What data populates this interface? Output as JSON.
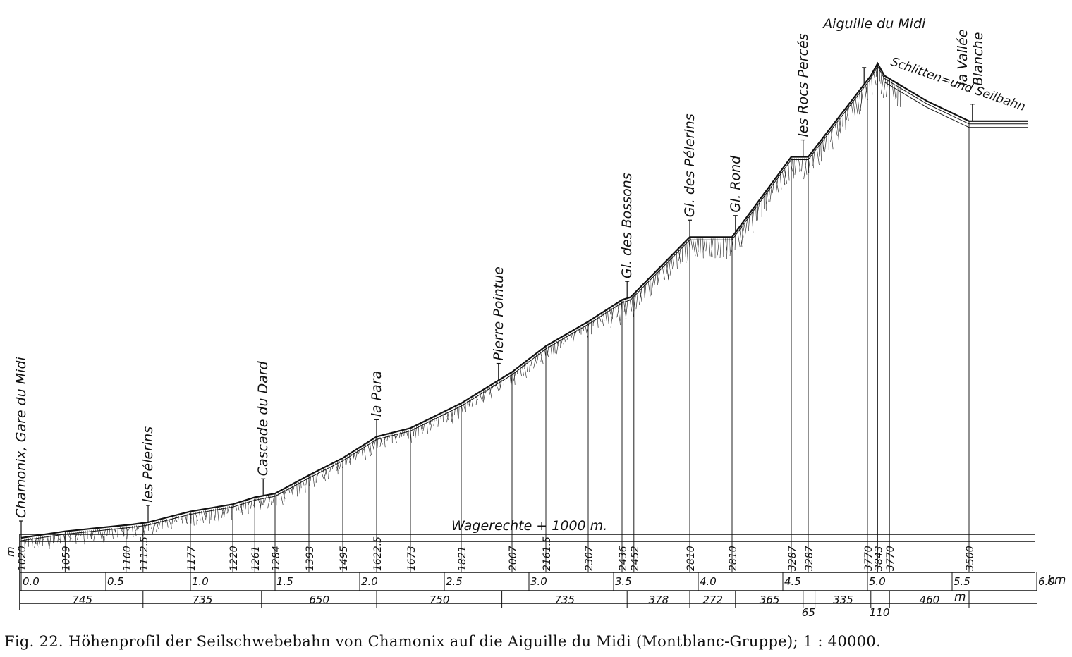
{
  "diagram": {
    "unit_label": "m",
    "km_unit": "km",
    "length_unit": "m",
    "horizontal_label": "Wagerechte + 1000 m.",
    "cable_label": "Schlitten=und Seilbahn",
    "stations": [
      {
        "name": "Chamonix, Gare du Midi",
        "km": 0.0
      },
      {
        "name": "les Pélerins",
        "km": 0.75
      },
      {
        "name": "Cascade du Dard",
        "km": 1.43
      },
      {
        "name": "la Para",
        "km": 2.1
      },
      {
        "name": "Pierre Pointue",
        "km": 2.82
      },
      {
        "name": "Gl. des Bossons",
        "km": 3.58
      },
      {
        "name": "Gl. des Pélerins",
        "km": 3.95
      },
      {
        "name": "Gl. Rond",
        "km": 4.22
      },
      {
        "name": "les Rocs Percés",
        "km": 4.62
      },
      {
        "name": "Aiguille du Midi",
        "km": 4.98
      },
      {
        "name": "la Vallée Blanche",
        "km": 5.62
      }
    ],
    "profile": [
      {
        "km": 0.0,
        "elev": 1020
      },
      {
        "km": 0.26,
        "elev": 1059
      },
      {
        "km": 0.66,
        "elev": 1100
      },
      {
        "km": 0.75,
        "elev": 1112.5
      },
      {
        "km": 1.0,
        "elev": 1177
      },
      {
        "km": 1.25,
        "elev": 1220
      },
      {
        "km": 1.38,
        "elev": 1261
      },
      {
        "km": 1.5,
        "elev": 1284
      },
      {
        "km": 1.7,
        "elev": 1393
      },
      {
        "km": 1.9,
        "elev": 1495
      },
      {
        "km": 2.1,
        "elev": 1622.5
      },
      {
        "km": 2.3,
        "elev": 1673
      },
      {
        "km": 2.6,
        "elev": 1821
      },
      {
        "km": 2.9,
        "elev": 2007
      },
      {
        "km": 3.1,
        "elev": 2161.5
      },
      {
        "km": 3.35,
        "elev": 2307
      },
      {
        "km": 3.55,
        "elev": 2436
      },
      {
        "km": 3.6,
        "elev": 2452
      },
      {
        "km": 3.95,
        "elev": 2810
      },
      {
        "km": 4.2,
        "elev": 2810
      },
      {
        "km": 4.55,
        "elev": 3287
      },
      {
        "km": 4.65,
        "elev": 3287
      },
      {
        "km": 5.02,
        "elev": 3770
      },
      {
        "km": 5.06,
        "elev": 3843
      },
      {
        "km": 5.1,
        "elev": 3770
      },
      {
        "km": 5.35,
        "elev": 3620
      },
      {
        "km": 5.6,
        "elev": 3500
      },
      {
        "km": 5.95,
        "elev": 3500
      }
    ],
    "elevation_labels": [
      {
        "km": 0.0,
        "text": "1020"
      },
      {
        "km": 0.26,
        "text": "1059"
      },
      {
        "km": 0.62,
        "text": "1100"
      },
      {
        "km": 0.72,
        "text": "1112.5"
      },
      {
        "km": 1.0,
        "text": "1177"
      },
      {
        "km": 1.25,
        "text": "1220"
      },
      {
        "km": 1.38,
        "text": "1261"
      },
      {
        "km": 1.5,
        "text": "1284"
      },
      {
        "km": 1.7,
        "text": "1393"
      },
      {
        "km": 1.9,
        "text": "1495"
      },
      {
        "km": 2.1,
        "text": "1622.5"
      },
      {
        "km": 2.3,
        "text": "1673"
      },
      {
        "km": 2.6,
        "text": "1821"
      },
      {
        "km": 2.9,
        "text": "2007"
      },
      {
        "km": 3.1,
        "text": "2161.5"
      },
      {
        "km": 3.35,
        "text": "2307"
      },
      {
        "km": 3.55,
        "text": "2436"
      },
      {
        "km": 3.62,
        "text": "2452"
      },
      {
        "km": 3.95,
        "text": "2810"
      },
      {
        "km": 4.2,
        "text": "2810"
      },
      {
        "km": 4.55,
        "text": "3287"
      },
      {
        "km": 4.65,
        "text": "3287"
      },
      {
        "km": 5.0,
        "text": "3770"
      },
      {
        "km": 5.06,
        "text": "3843"
      },
      {
        "km": 5.13,
        "text": "3770"
      },
      {
        "km": 5.6,
        "text": "3500"
      }
    ],
    "km_ticks": [
      "0.0",
      "0.5",
      "1.0",
      "1.5",
      "2.0",
      "2.5",
      "3.0",
      "3.5",
      "4.0",
      "4.5",
      "5.0",
      "5.5",
      "6.0"
    ],
    "segments": [
      {
        "from_km": 0.0,
        "to_km": 0.72,
        "length": "745"
      },
      {
        "from_km": 0.72,
        "to_km": 1.42,
        "length": "735"
      },
      {
        "from_km": 1.42,
        "to_km": 2.1,
        "length": "650"
      },
      {
        "from_km": 2.1,
        "to_km": 2.84,
        "length": "750"
      },
      {
        "from_km": 2.84,
        "to_km": 3.58,
        "length": "735"
      },
      {
        "from_km": 3.58,
        "to_km": 3.95,
        "length": "378"
      },
      {
        "from_km": 3.95,
        "to_km": 4.22,
        "length": "272"
      },
      {
        "from_km": 4.22,
        "to_km": 4.62,
        "length": "365"
      },
      {
        "from_km": 4.62,
        "to_km": 4.69,
        "length": "65"
      },
      {
        "from_km": 4.69,
        "to_km": 5.02,
        "length": "335"
      },
      {
        "from_km": 5.02,
        "to_km": 5.13,
        "length": "110"
      },
      {
        "from_km": 5.13,
        "to_km": 5.6,
        "length": "460"
      }
    ]
  },
  "caption": "Fig. 22.  Höhenprofil der Seilschwebebahn von Chamonix auf die Aiguille du Midi (Montblanc-Gruppe); 1 : 40000."
}
